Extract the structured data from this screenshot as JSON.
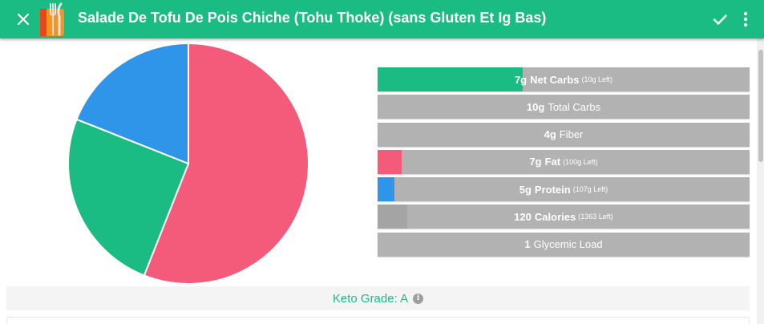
{
  "header": {
    "title": "Salade De Tofu De Pois Chiche (Tohu Thoke) (sans Gluten Et Ig Bas)",
    "close_icon": "close-icon",
    "logo_icon": "fork-knife-logo-icon",
    "check_icon": "check-icon",
    "more_icon": "more-vert-icon"
  },
  "colors": {
    "brand": "#1bbc83",
    "carbs": "#1bbc83",
    "fat": "#f45b7a",
    "protein": "#2f95e8",
    "bar_bg": "#b2b2b2",
    "calories_fill": "#a4a4a4"
  },
  "chart_data": {
    "type": "pie",
    "slices": [
      {
        "label": "Fat",
        "value": 56,
        "color": "#f45b7a"
      },
      {
        "label": "Net Carbs",
        "value": 25,
        "color": "#1bbc83"
      },
      {
        "label": "Protein",
        "value": 19,
        "color": "#2f95e8"
      }
    ]
  },
  "nutrients": [
    {
      "name": "net-carbs",
      "amount": "7g",
      "label": "Net Carbs",
      "left": "(10g Left)",
      "fill": 0.39,
      "color": "#1bbc83"
    },
    {
      "name": "total-carbs",
      "amount": "10g",
      "label": "Total Carbs",
      "left": "",
      "fill": 0,
      "color": "#b2b2b2"
    },
    {
      "name": "fiber",
      "amount": "4g",
      "label": "Fiber",
      "left": "",
      "fill": 0,
      "color": "#b2b2b2"
    },
    {
      "name": "fat",
      "amount": "7g",
      "label": "Fat",
      "left": "(100g Left)",
      "fill": 0.065,
      "color": "#f45b7a"
    },
    {
      "name": "protein",
      "amount": "5g",
      "label": "Protein",
      "left": "(107g Left)",
      "fill": 0.045,
      "color": "#2f95e8"
    },
    {
      "name": "calories",
      "amount": "120",
      "label": "Calories",
      "left": "(1363 Left)",
      "fill": 0.08,
      "color": "#a4a4a4"
    },
    {
      "name": "glycemic-load",
      "amount": "1",
      "label": "Glycemic Load",
      "left": "",
      "fill": 0,
      "color": "#b2b2b2"
    }
  ],
  "keto": {
    "label": "Keto Grade: A",
    "info_icon": "info-icon",
    "info_glyph": "i"
  }
}
